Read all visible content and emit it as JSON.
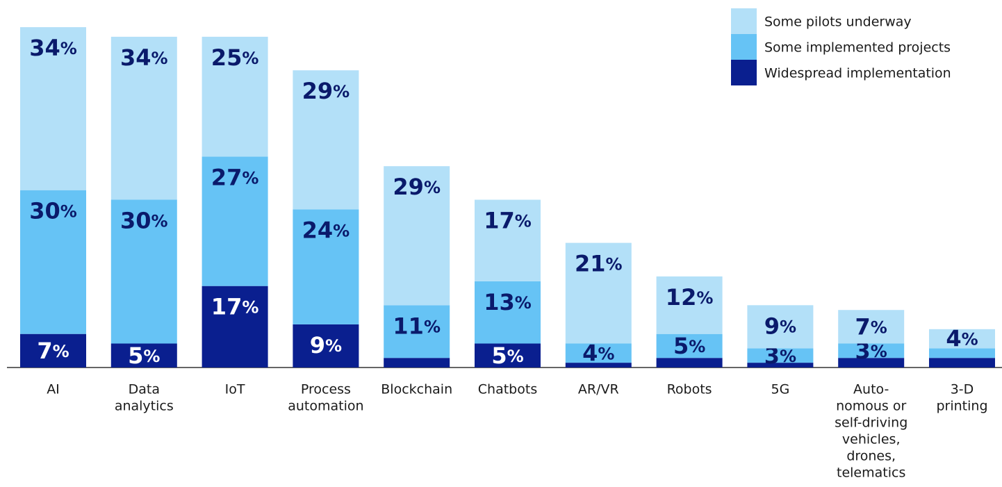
{
  "chart_data": {
    "type": "stacked_bar",
    "categories": [
      [
        "AI"
      ],
      [
        "Data",
        "analytics"
      ],
      [
        "IoT"
      ],
      [
        "Process",
        "automation"
      ],
      [
        "Blockchain"
      ],
      [
        "Chatbots"
      ],
      [
        "AR/VR"
      ],
      [
        "Robots"
      ],
      [
        "5G"
      ],
      [
        "Auto-",
        "nomous or",
        "self-driving",
        "vehicles,",
        "drones,",
        "telematics"
      ],
      [
        "3-D",
        "printing"
      ]
    ],
    "series": [
      {
        "name": "Widespread implementation",
        "color": "#0a1f8f",
        "label_color": "#ffffff",
        "values": [
          7,
          5,
          17,
          9,
          2,
          5,
          1,
          2,
          1,
          2,
          2
        ],
        "value_labels": [
          "7%",
          "5%",
          "17%",
          "9%",
          null,
          "5%",
          null,
          null,
          null,
          null,
          null
        ]
      },
      {
        "name": "Some implemented projects",
        "color": "#66c3f5",
        "label_color": "#0a1a6b",
        "values": [
          30,
          30,
          27,
          24,
          11,
          13,
          4,
          5,
          3,
          3,
          2
        ],
        "value_labels": [
          "30%",
          "30%",
          "27%",
          "24%",
          "11%",
          "13%",
          "4%",
          "5%",
          "3%",
          "3%",
          null
        ]
      },
      {
        "name": "Some pilots underway",
        "color": "#b3e0f8",
        "label_color": "#0a1a6b",
        "values": [
          34,
          34,
          25,
          29,
          29,
          17,
          21,
          12,
          9,
          7,
          4
        ],
        "value_labels": [
          "34%",
          "34%",
          "25%",
          "29%",
          "29%",
          "17%",
          "21%",
          "12%",
          "9%",
          "7%",
          "4%"
        ]
      }
    ],
    "legend": "top-right"
  }
}
